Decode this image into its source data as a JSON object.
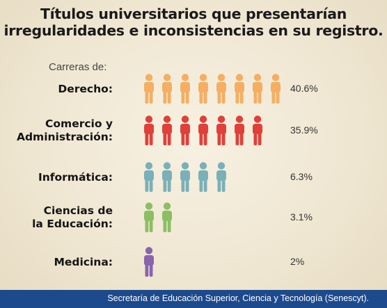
{
  "title": {
    "line1": "Títulos universitarios que presentarían",
    "line2": "irregularidades e inconsistencias en su registro."
  },
  "subhead": "Carreras de:",
  "footer": "Secretaría de Educación Superior, Ciencia y Tecnología (Senescyt).",
  "chart_data": {
    "type": "pictograph",
    "title": "Títulos universitarios que presentarían irregularidades e inconsistencias en su registro.",
    "subtitle": "Carreras de:",
    "unit": "%",
    "categories": [
      {
        "lines": [
          "Derecho:"
        ],
        "value": 40.6,
        "value_label": "40.6%",
        "icons": 8,
        "color": "#f5ae62"
      },
      {
        "lines": [
          "Comercio y",
          "Administración:"
        ],
        "value": 35.9,
        "value_label": "35.9%",
        "icons": 7,
        "color": "#e0403a"
      },
      {
        "lines": [
          "Informática:"
        ],
        "value": 6.3,
        "value_label": "6.3%",
        "icons": 5,
        "color": "#7ab0b8"
      },
      {
        "lines": [
          "Ciencias de",
          "la Educación:"
        ],
        "value": 3.1,
        "value_label": "3.1%",
        "icons": 2,
        "color": "#8cbe62"
      },
      {
        "lines": [
          "Medicina:"
        ],
        "value": 2,
        "value_label": "2%",
        "icons": 1,
        "color": "#8a63ad"
      }
    ]
  }
}
